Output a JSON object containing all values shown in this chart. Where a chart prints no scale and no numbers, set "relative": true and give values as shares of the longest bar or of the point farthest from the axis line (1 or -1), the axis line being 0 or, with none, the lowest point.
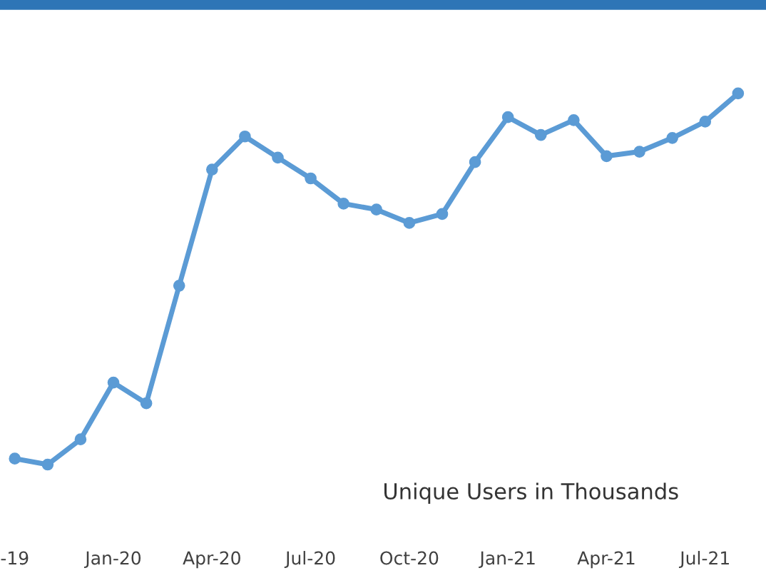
{
  "chart_data": {
    "type": "line",
    "relative": true,
    "tick_labels": "x",
    "marker": "circle",
    "line_style": "solid",
    "categories": [
      "-19",
      null,
      null,
      "Jan-20",
      null,
      null,
      "Apr-20",
      null,
      null,
      "Jul-20",
      null,
      null,
      "Oct-20",
      null,
      null,
      "Jan-21",
      null,
      null,
      "Apr-21",
      null,
      null,
      "Jul-21",
      null
    ],
    "series": [
      {
        "color": "#5b9bd5",
        "values": [
          0.016,
          0,
          0.068,
          0.221,
          0.165,
          0.482,
          0.795,
          0.884,
          0.827,
          0.771,
          0.703,
          0.687,
          0.651,
          0.675,
          0.815,
          0.936,
          0.888,
          0.928,
          0.831,
          0.843,
          0.88,
          0.924,
          1
        ]
      }
    ],
    "annotations": [
      "Unique Users in Thousands"
    ]
  }
}
